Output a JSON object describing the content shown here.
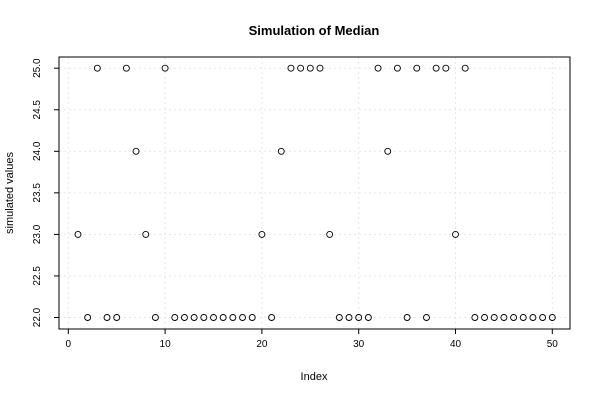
{
  "chart_data": {
    "type": "scatter",
    "title": "Simulation of Median",
    "xlabel": "Index",
    "ylabel": "simulated values",
    "xlim": [
      1,
      50
    ],
    "ylim": [
      22,
      25
    ],
    "x_ticks": [
      "0",
      "10",
      "20",
      "30",
      "40",
      "50"
    ],
    "y_ticks": [
      "22.0",
      "22.5",
      "23.0",
      "23.5",
      "24.0",
      "24.5",
      "25.0"
    ],
    "grid": true,
    "marker": "open-circle",
    "x": [
      1,
      2,
      3,
      4,
      5,
      6,
      7,
      8,
      9,
      10,
      11,
      12,
      13,
      14,
      15,
      16,
      17,
      18,
      19,
      20,
      21,
      22,
      23,
      24,
      25,
      26,
      27,
      28,
      29,
      30,
      31,
      32,
      33,
      34,
      35,
      36,
      37,
      38,
      39,
      40,
      41,
      42,
      43,
      44,
      45,
      46,
      47,
      48,
      49,
      50
    ],
    "y": [
      23,
      22,
      25,
      22,
      22,
      25,
      24,
      23,
      22,
      25,
      22,
      22,
      22,
      22,
      22,
      22,
      22,
      22,
      22,
      23,
      22,
      24,
      25,
      25,
      25,
      25,
      23,
      22,
      22,
      22,
      22,
      25,
      24,
      25,
      22,
      25,
      22,
      25,
      25,
      23,
      25,
      22,
      22,
      22,
      22,
      22,
      22,
      22,
      22,
      22
    ]
  }
}
